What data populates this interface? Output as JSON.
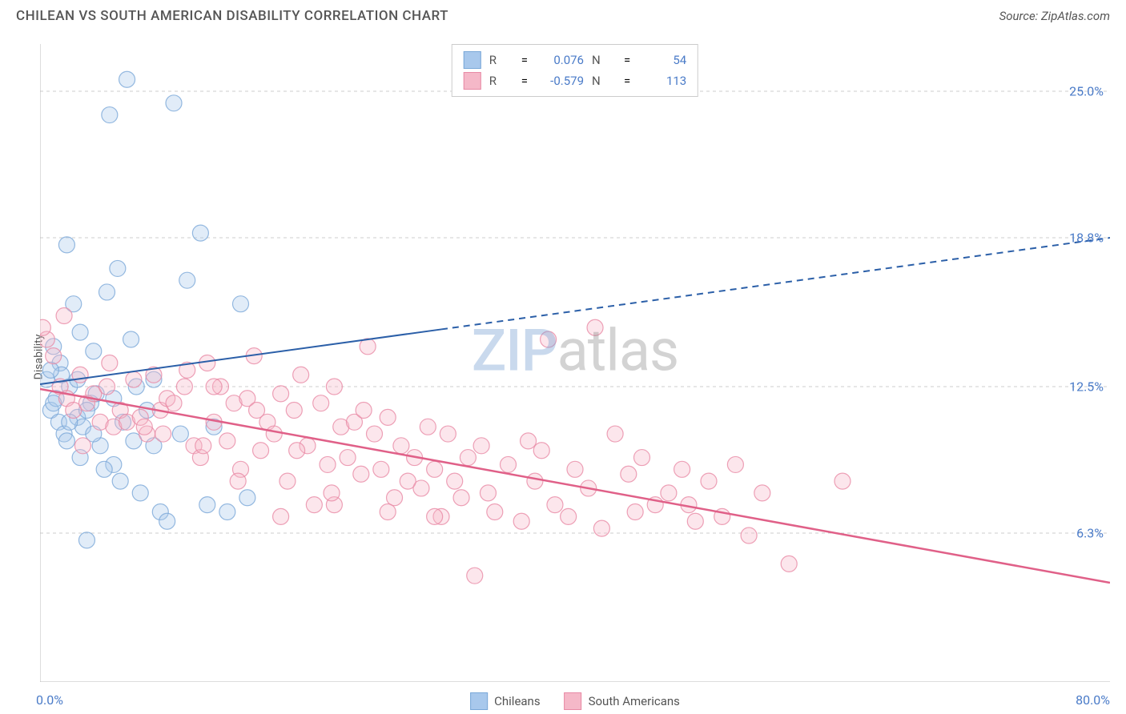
{
  "title": "CHILEAN VS SOUTH AMERICAN DISABILITY CORRELATION CHART",
  "source": "Source: ZipAtlas.com",
  "watermark": {
    "part1": "ZIP",
    "part2": "atlas"
  },
  "ylabel": "Disability",
  "chart": {
    "type": "scatter",
    "xlim": [
      0,
      80
    ],
    "ylim": [
      0,
      27
    ],
    "x_axis_label_left": "0.0%",
    "x_axis_label_right": "80.0%",
    "x_ticks": [
      0,
      10,
      20,
      30,
      40,
      50,
      60,
      70,
      80
    ],
    "y_gridlines": [
      {
        "y": 6.3,
        "label": "6.3%"
      },
      {
        "y": 12.5,
        "label": "12.5%"
      },
      {
        "y": 18.8,
        "label": "18.8%"
      },
      {
        "y": 25.0,
        "label": "25.0%"
      }
    ],
    "axis_label_color": "#4a7bc8",
    "grid_color": "#cccccc",
    "axis_line_color": "#bbbbbb",
    "background_color": "#ffffff",
    "point_radius": 10,
    "point_fill_opacity": 0.35,
    "point_stroke_opacity": 0.8,
    "point_stroke_width": 1.2
  },
  "series": [
    {
      "id": "chileans",
      "label": "Chileans",
      "color_fill": "#a8c8ec",
      "color_stroke": "#7aa8d8",
      "R": "0.076",
      "N": "54",
      "trend": {
        "x1": 0,
        "y1": 12.6,
        "x2": 80,
        "y2": 18.8,
        "solid_until_x": 30,
        "color": "#2b5fa8",
        "width": 2
      },
      "points": [
        [
          0.5,
          12.8
        ],
        [
          0.8,
          11.5
        ],
        [
          1.0,
          14.2
        ],
        [
          1.2,
          12.0
        ],
        [
          1.4,
          11.0
        ],
        [
          1.5,
          13.5
        ],
        [
          1.8,
          10.5
        ],
        [
          2.0,
          18.5
        ],
        [
          2.2,
          12.5
        ],
        [
          2.5,
          16.0
        ],
        [
          2.8,
          11.2
        ],
        [
          3.0,
          14.8
        ],
        [
          3.2,
          10.8
        ],
        [
          3.5,
          6.0
        ],
        [
          3.8,
          11.8
        ],
        [
          4.0,
          14.0
        ],
        [
          4.2,
          12.2
        ],
        [
          4.5,
          10.0
        ],
        [
          5.0,
          16.5
        ],
        [
          5.2,
          24.0
        ],
        [
          5.5,
          9.2
        ],
        [
          5.8,
          17.5
        ],
        [
          6.0,
          8.5
        ],
        [
          6.5,
          25.5
        ],
        [
          7.0,
          10.2
        ],
        [
          7.5,
          8.0
        ],
        [
          8.0,
          11.5
        ],
        [
          8.5,
          12.8
        ],
        [
          9.0,
          7.2
        ],
        [
          9.5,
          6.8
        ],
        [
          10.0,
          24.5
        ],
        [
          10.5,
          10.5
        ],
        [
          11.0,
          17.0
        ],
        [
          12.0,
          19.0
        ],
        [
          12.5,
          7.5
        ],
        [
          13.0,
          10.8
        ],
        [
          15.0,
          16.0
        ],
        [
          15.5,
          7.8
        ],
        [
          4.8,
          9.0
        ],
        [
          3.0,
          9.5
        ],
        [
          2.0,
          10.2
        ],
        [
          1.6,
          13.0
        ],
        [
          2.8,
          12.8
        ],
        [
          6.2,
          11.0
        ],
        [
          4.0,
          10.5
        ],
        [
          3.5,
          11.5
        ],
        [
          2.2,
          11.0
        ],
        [
          5.5,
          12.0
        ],
        [
          1.0,
          11.8
        ],
        [
          0.8,
          13.2
        ],
        [
          14.0,
          7.2
        ],
        [
          8.5,
          10.0
        ],
        [
          7.2,
          12.5
        ],
        [
          6.8,
          14.5
        ]
      ]
    },
    {
      "id": "south_americans",
      "label": "South Americans",
      "color_fill": "#f5b8c8",
      "color_stroke": "#e88aa5",
      "R": "-0.579",
      "N": "113",
      "trend": {
        "x1": 0,
        "y1": 12.4,
        "x2": 80,
        "y2": 4.2,
        "solid_until_x": 80,
        "color": "#e06088",
        "width": 2.5
      },
      "points": [
        [
          0.5,
          14.5
        ],
        [
          1.0,
          13.8
        ],
        [
          1.5,
          12.5
        ],
        [
          2.0,
          12.0
        ],
        [
          2.5,
          11.5
        ],
        [
          3.0,
          13.0
        ],
        [
          3.5,
          11.8
        ],
        [
          4.0,
          12.2
        ],
        [
          4.5,
          11.0
        ],
        [
          5.0,
          12.5
        ],
        [
          5.5,
          10.8
        ],
        [
          6.0,
          11.5
        ],
        [
          6.5,
          11.0
        ],
        [
          7.0,
          12.8
        ],
        [
          7.5,
          11.2
        ],
        [
          8.0,
          10.5
        ],
        [
          8.5,
          13.0
        ],
        [
          9.0,
          11.5
        ],
        [
          9.5,
          12.0
        ],
        [
          10.0,
          11.8
        ],
        [
          11.0,
          13.2
        ],
        [
          11.5,
          10.0
        ],
        [
          12.0,
          9.5
        ],
        [
          12.5,
          13.5
        ],
        [
          13.0,
          11.0
        ],
        [
          13.5,
          12.5
        ],
        [
          14.0,
          10.2
        ],
        [
          14.5,
          11.8
        ],
        [
          15.0,
          9.0
        ],
        [
          15.5,
          12.0
        ],
        [
          16.0,
          13.8
        ],
        [
          16.5,
          9.8
        ],
        [
          17.0,
          11.0
        ],
        [
          17.5,
          10.5
        ],
        [
          18.0,
          12.2
        ],
        [
          18.5,
          8.5
        ],
        [
          19.0,
          11.5
        ],
        [
          19.5,
          13.0
        ],
        [
          20.0,
          10.0
        ],
        [
          20.5,
          7.5
        ],
        [
          21.0,
          11.8
        ],
        [
          21.5,
          9.2
        ],
        [
          22.0,
          12.5
        ],
        [
          22.5,
          10.8
        ],
        [
          23.0,
          9.5
        ],
        [
          23.5,
          11.0
        ],
        [
          24.0,
          8.8
        ],
        [
          24.5,
          14.2
        ],
        [
          25.0,
          10.5
        ],
        [
          25.5,
          9.0
        ],
        [
          26.0,
          11.2
        ],
        [
          26.5,
          7.8
        ],
        [
          27.0,
          10.0
        ],
        [
          28.0,
          9.5
        ],
        [
          28.5,
          8.2
        ],
        [
          29.0,
          10.8
        ],
        [
          29.5,
          9.0
        ],
        [
          30.0,
          7.0
        ],
        [
          30.5,
          10.5
        ],
        [
          31.0,
          8.5
        ],
        [
          13.0,
          12.5
        ],
        [
          18.0,
          7.0
        ],
        [
          22.0,
          7.5
        ],
        [
          26.0,
          7.2
        ],
        [
          32.0,
          9.5
        ],
        [
          32.5,
          4.5
        ],
        [
          33.0,
          10.0
        ],
        [
          33.5,
          8.0
        ],
        [
          34.0,
          7.2
        ],
        [
          35.0,
          9.2
        ],
        [
          36.0,
          6.8
        ],
        [
          37.0,
          8.5
        ],
        [
          37.5,
          9.8
        ],
        [
          38.0,
          14.5
        ],
        [
          38.5,
          7.5
        ],
        [
          40.0,
          9.0
        ],
        [
          41.0,
          8.2
        ],
        [
          42.0,
          6.5
        ],
        [
          43.0,
          10.5
        ],
        [
          44.0,
          8.8
        ],
        [
          45.0,
          9.5
        ],
        [
          46.0,
          7.5
        ],
        [
          47.0,
          8.0
        ],
        [
          48.0,
          9.0
        ],
        [
          49.0,
          6.8
        ],
        [
          50.0,
          8.5
        ],
        [
          51.0,
          7.0
        ],
        [
          52.0,
          9.2
        ],
        [
          54.0,
          8.0
        ],
        [
          56.0,
          5.0
        ],
        [
          60.0,
          8.5
        ],
        [
          0.2,
          15.0
        ],
        [
          1.8,
          15.5
        ],
        [
          3.2,
          10.0
        ],
        [
          5.2,
          13.5
        ],
        [
          7.8,
          10.8
        ],
        [
          9.2,
          10.5
        ],
        [
          10.8,
          12.5
        ],
        [
          12.2,
          10.0
        ],
        [
          14.8,
          8.5
        ],
        [
          16.2,
          11.5
        ],
        [
          19.2,
          9.8
        ],
        [
          21.8,
          8.0
        ],
        [
          24.2,
          11.5
        ],
        [
          27.5,
          8.5
        ],
        [
          31.5,
          7.8
        ],
        [
          36.5,
          10.2
        ],
        [
          39.5,
          7.0
        ],
        [
          44.5,
          7.2
        ],
        [
          53.0,
          6.2
        ],
        [
          41.5,
          15.0
        ],
        [
          48.5,
          7.5
        ],
        [
          29.5,
          7.0
        ]
      ]
    }
  ],
  "legend_top": {
    "R_label": "R",
    "N_label": "N",
    "eq": "="
  },
  "legend_bottom": {
    "items": [
      "Chileans",
      "South Americans"
    ]
  }
}
